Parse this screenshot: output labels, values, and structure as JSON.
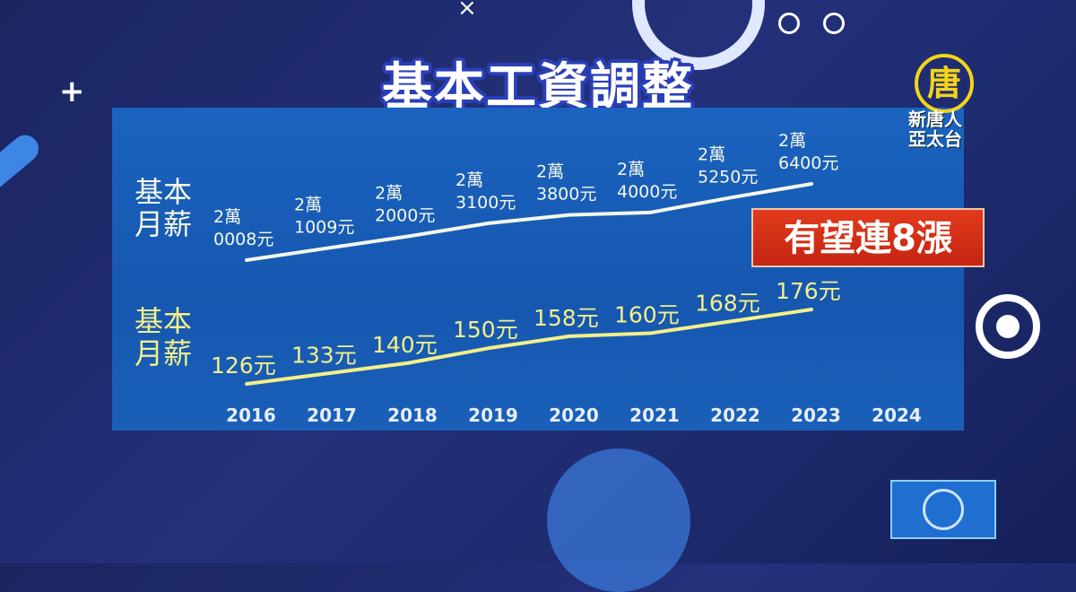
{
  "title": "基本工資調整",
  "badge": "有望連8漲",
  "logo": {
    "text_line1": "新唐人",
    "text_line2": "亞太台",
    "emblem": "唐"
  },
  "colors": {
    "background": "#1e2a6e",
    "panel": "#1a5fb4",
    "monthly_line": "#f4f8e8",
    "hourly_line": "#f3f08a",
    "badge": "#d8301a"
  },
  "chart_data": [
    {
      "type": "line",
      "series_label": "基本月薪",
      "x": [
        "2016",
        "2017",
        "2018",
        "2019",
        "2020",
        "2021",
        "2022",
        "2023"
      ],
      "values": [
        20008,
        21009,
        22000,
        23100,
        23800,
        24000,
        25250,
        26400
      ],
      "data_labels": [
        [
          "2萬",
          "0008元"
        ],
        [
          "2萬",
          "1009元"
        ],
        [
          "2萬",
          "2000元"
        ],
        [
          "2萬",
          "3100元"
        ],
        [
          "2萬",
          "3800元"
        ],
        [
          "2萬",
          "4000元"
        ],
        [
          "2萬",
          "5250元"
        ],
        [
          "2萬",
          "6400元"
        ]
      ]
    },
    {
      "type": "line",
      "series_label": "基本月薪",
      "x": [
        "2016",
        "2017",
        "2018",
        "2019",
        "2020",
        "2021",
        "2022",
        "2023"
      ],
      "values": [
        126,
        133,
        140,
        150,
        158,
        160,
        168,
        176
      ],
      "data_labels": [
        "126元",
        "133元",
        "140元",
        "150元",
        "158元",
        "160元",
        "168元",
        "176元"
      ]
    }
  ],
  "x_ticks": [
    "2016",
    "2017",
    "2018",
    "2019",
    "2020",
    "2021",
    "2022",
    "2023",
    "2024"
  ]
}
